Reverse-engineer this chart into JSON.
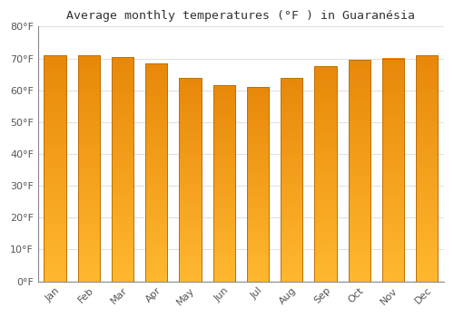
{
  "months": [
    "Jan",
    "Feb",
    "Mar",
    "Apr",
    "May",
    "Jun",
    "Jul",
    "Aug",
    "Sep",
    "Oct",
    "Nov",
    "Dec"
  ],
  "values": [
    71,
    71,
    70.5,
    68.5,
    64,
    61.5,
    61,
    64,
    67.5,
    69.5,
    70,
    71
  ],
  "title": "Average monthly temperatures (°F ) in Guaranésia",
  "ylim": [
    0,
    80
  ],
  "yticks": [
    0,
    10,
    20,
    30,
    40,
    50,
    60,
    70,
    80
  ],
  "ytick_labels": [
    "0°F",
    "10°F",
    "20°F",
    "30°F",
    "40°F",
    "50°F",
    "60°F",
    "70°F",
    "80°F"
  ],
  "bar_color_top": "#E8880A",
  "bar_color_bottom": "#FFB830",
  "bar_edge_color": "#C07000",
  "background_color": "#FFFFFF",
  "grid_color": "#E0E0E0",
  "title_fontsize": 9.5,
  "tick_fontsize": 8,
  "figsize": [
    5.0,
    3.5
  ],
  "dpi": 100,
  "bar_width": 0.65
}
